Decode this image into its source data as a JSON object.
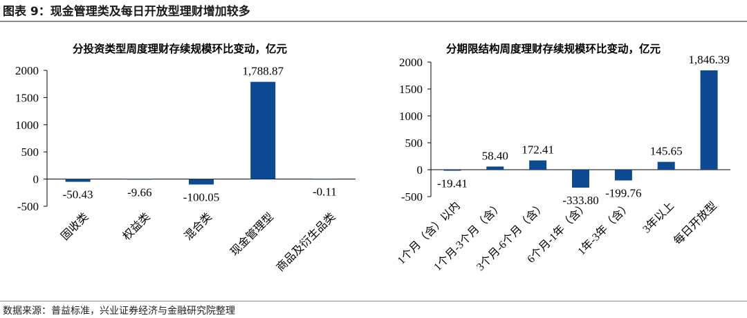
{
  "figure_title": "图表 9：现金管理类及每日开放型理财增加较多",
  "source": "数据来源：普益标准，兴业证券经济与金融研究院整理",
  "bar_color": "#0d4a92",
  "chart_data": [
    {
      "type": "bar",
      "title": "分投资类型周度理财存续规模环比变动，亿元",
      "categories": [
        "固收类",
        "权益类",
        "混合类",
        "现金管理型",
        "商品及衍生品类"
      ],
      "values": [
        -50.43,
        -9.66,
        -100.05,
        1788.87,
        -0.11
      ],
      "value_labels": [
        "-50.43",
        "-9.66",
        "-100.05",
        "1,788.87",
        "-0.11"
      ],
      "ylim": [
        -500,
        2000
      ],
      "yticks": [
        -500,
        0,
        500,
        1000,
        1500,
        2000
      ],
      "xlabel": "",
      "ylabel": "",
      "grid": false
    },
    {
      "type": "bar",
      "title": "分期限结构周度理财存续规模环比变动，亿元",
      "categories": [
        "1个月（含）以内",
        "1个月-3个月（含）",
        "3个月-6个月（含）",
        "6个月-1年（含）",
        "1年-3年（含）",
        "3年以上",
        "每日开放型"
      ],
      "values": [
        -19.41,
        58.4,
        172.41,
        -333.8,
        -199.76,
        145.65,
        1846.39
      ],
      "value_labels": [
        "-19.41",
        "58.40",
        "172.41",
        "-333.80",
        "-199.76",
        "145.65",
        "1,846.39"
      ],
      "ylim": [
        -500,
        2000
      ],
      "yticks": [
        -500,
        0,
        500,
        1000,
        1500,
        2000
      ],
      "xlabel": "",
      "ylabel": "",
      "grid": false
    }
  ]
}
